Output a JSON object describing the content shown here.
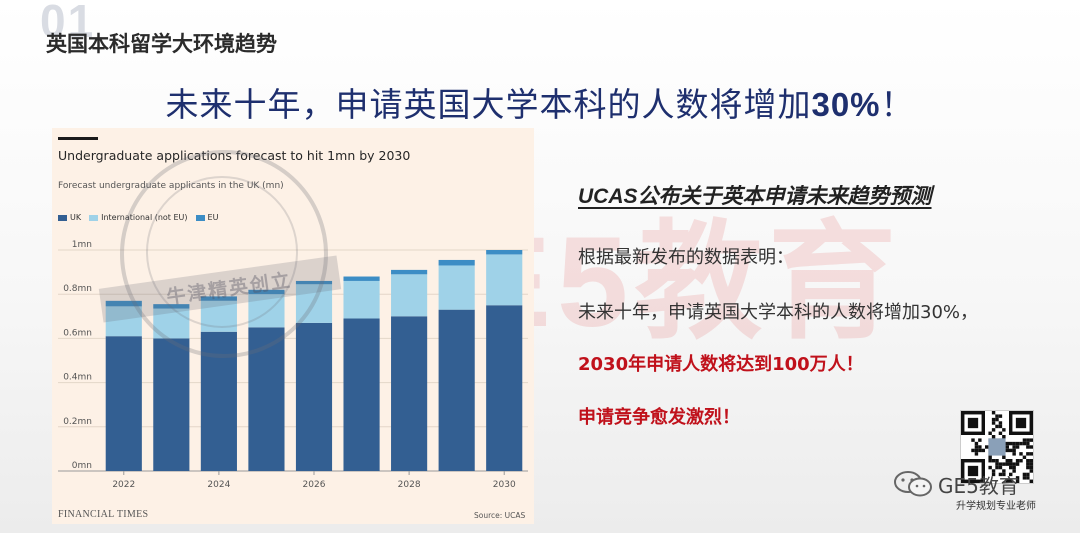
{
  "slide": {
    "number": "01",
    "section_title": "英国本科留学大环境趋势",
    "headline_prefix": "未来十年，申请英国大学本科的人数将增加",
    "headline_pct": "30%",
    "headline_suffix": "！"
  },
  "chart_data": {
    "type": "bar",
    "stacked": true,
    "title": "Undergraduate applications forecast to hit 1mn by 2030",
    "subtitle": "Forecast undergraduate applicants in the UK (mn)",
    "categories": [
      "2022",
      "2023",
      "2024",
      "2025",
      "2026",
      "2027",
      "2028",
      "2029",
      "2030"
    ],
    "x_tick_labels": [
      "2022",
      "",
      "2024",
      "",
      "2026",
      "",
      "2028",
      "",
      "2030"
    ],
    "series": [
      {
        "name": "UK",
        "color": "#335f92",
        "values": [
          0.61,
          0.6,
          0.63,
          0.65,
          0.67,
          0.69,
          0.7,
          0.73,
          0.75
        ]
      },
      {
        "name": "International (not EU)",
        "color": "#9fd2e8",
        "values": [
          0.135,
          0.135,
          0.14,
          0.15,
          0.175,
          0.17,
          0.19,
          0.2,
          0.23
        ]
      },
      {
        "name": "EU",
        "color": "#3c8dc5",
        "values": [
          0.025,
          0.02,
          0.02,
          0.02,
          0.015,
          0.02,
          0.02,
          0.025,
          0.02
        ]
      }
    ],
    "yticks": [
      {
        "value": 0,
        "label": "0mn"
      },
      {
        "value": 0.2,
        "label": "0.2mn"
      },
      {
        "value": 0.4,
        "label": "0.4mn"
      },
      {
        "value": 0.6,
        "label": "0.6mn"
      },
      {
        "value": 0.8,
        "label": "0.8mn"
      },
      {
        "value": 1.0,
        "label": "1mn"
      }
    ],
    "ylim": [
      0,
      1.0
    ],
    "grid": true,
    "legend_position": "top-left",
    "branding": "FINANCIAL TIMES",
    "source": "Source: UCAS"
  },
  "info": {
    "title_en": "UCAS",
    "title_zh": "公布关于英本申请未来趋势预测",
    "line1": "根据最新发布的数据表明：",
    "line2": "未来十年，申请英国大学本科的人数将增加30%，",
    "line3": "2030年申请人数将达到100万人！",
    "line4": "申请竞争愈发激烈！"
  },
  "watermarks": {
    "big": "GE5教育",
    "stamp": "牛津精英创立"
  },
  "brand": {
    "label": "GE5教育",
    "tagline": "升学规划专业老师"
  },
  "colors": {
    "headline": "#1e2f6e",
    "accent_red": "#c0111b",
    "chart_bg": "#fdf1e6"
  }
}
